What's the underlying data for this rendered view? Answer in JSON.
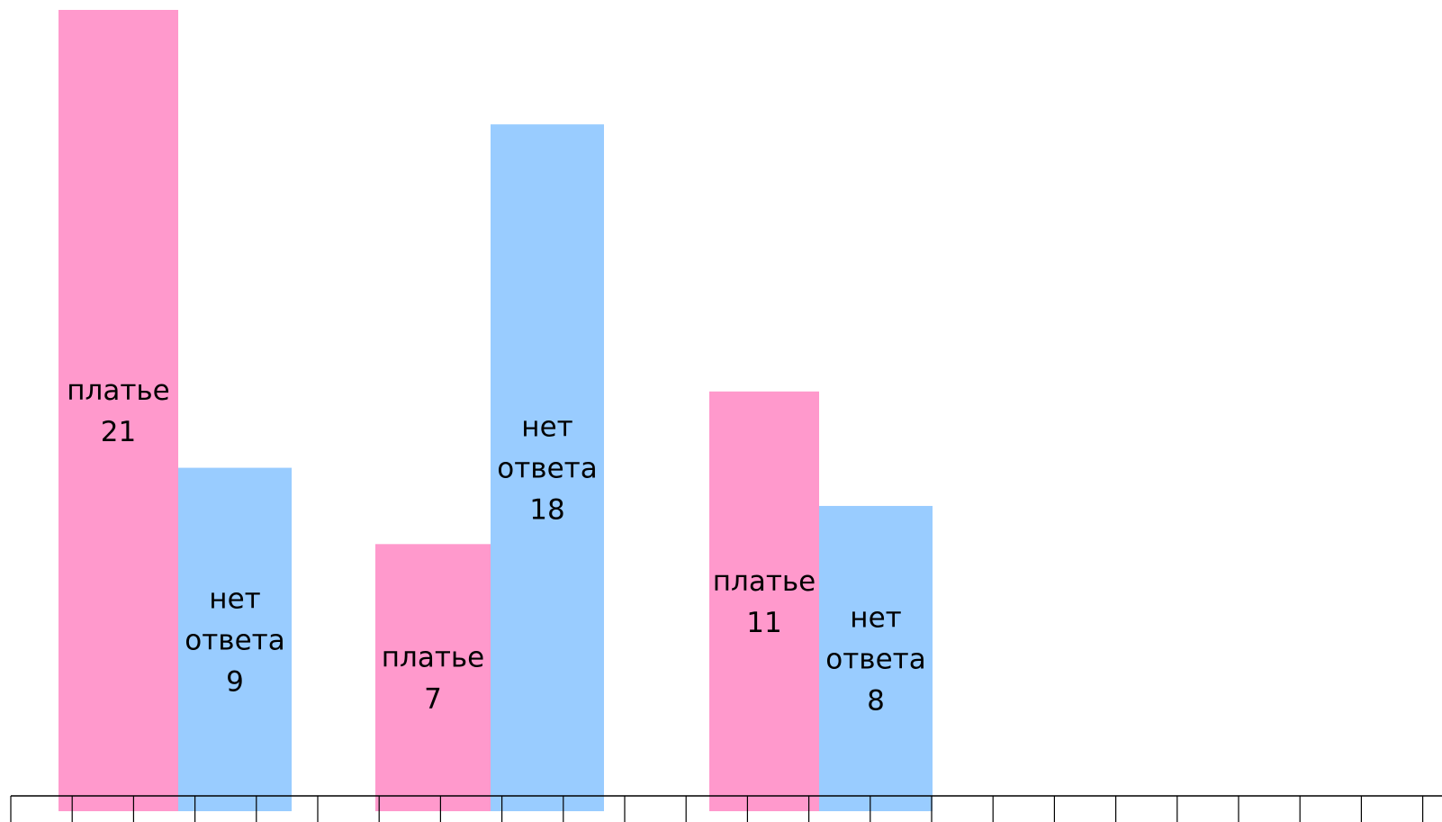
{
  "chart_data": {
    "type": "bar",
    "categories": [
      "",
      "",
      ""
    ],
    "series": [
      {
        "name": "платье",
        "values": [
          21,
          7,
          11
        ],
        "color": "#FF99CC"
      },
      {
        "name": "нет ответа",
        "values": [
          9,
          18,
          8
        ],
        "color": "#99CCFF"
      }
    ],
    "bar_labels": [
      [
        {
          "lines": [
            "платье",
            "21"
          ]
        },
        {
          "lines": [
            "нет",
            "ответа",
            "9"
          ]
        }
      ],
      [
        {
          "lines": [
            "платье",
            "7"
          ]
        },
        {
          "lines": [
            "нет",
            "ответа",
            "18"
          ]
        }
      ],
      [
        {
          "lines": [
            "платье",
            "11"
          ]
        },
        {
          "lines": [
            "нет",
            "ответа",
            "8"
          ]
        }
      ]
    ],
    "ylim": [
      0,
      21
    ],
    "grid": false,
    "legend": "none",
    "axis_color": "#000000"
  }
}
